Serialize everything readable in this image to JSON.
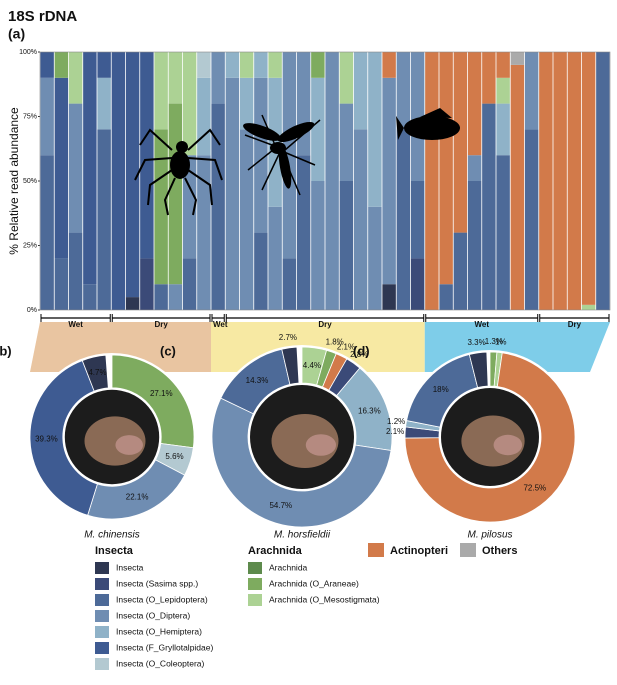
{
  "chart_data": [
    {
      "type": "bar",
      "stacked": true,
      "title": "18S rDNA",
      "panel": "(a)",
      "y_label": "% Relative read abundance",
      "ylim": [
        0,
        100
      ],
      "yticks": [
        {
          "value": 0,
          "label": "0%"
        },
        {
          "value": 25,
          "label": "25%"
        },
        {
          "value": 50,
          "label": "50%"
        },
        {
          "value": 75,
          "label": "75%"
        },
        {
          "value": 100,
          "label": "100%"
        }
      ],
      "categories": [
        null,
        null,
        null,
        null,
        null,
        null,
        null,
        null,
        null,
        null,
        null,
        null,
        null,
        null,
        null,
        null,
        null,
        null,
        null,
        null,
        null,
        null,
        null,
        null,
        null,
        null,
        null,
        null,
        null,
        null,
        null,
        null,
        null,
        null,
        null,
        null,
        null,
        null,
        null,
        null
      ],
      "group_labels": [
        "Wet",
        "Dry",
        "Wet",
        "Dry",
        "Wet",
        "Dry"
      ],
      "legend_groups": [
        "Insecta",
        "Arachnida"
      ],
      "series": [
        {
          "name": "Insecta",
          "color": "#2e3752",
          "values": [
            0,
            0,
            0,
            0,
            0,
            0,
            5,
            0,
            0,
            0,
            0,
            0,
            0,
            0,
            0,
            0,
            0,
            0,
            0,
            0,
            0,
            0,
            0,
            0,
            10,
            0,
            0,
            0,
            0,
            0,
            0,
            0,
            0,
            0,
            0,
            0,
            0,
            0,
            0,
            0
          ]
        },
        {
          "name": "Insecta (Sasima spp.)",
          "color": "#3b4a78",
          "values": [
            0,
            0,
            0,
            0,
            0,
            0,
            0,
            20,
            0,
            0,
            0,
            0,
            0,
            0,
            0,
            0,
            0,
            0,
            0,
            0,
            0,
            0,
            0,
            0,
            0,
            0,
            20,
            0,
            0,
            0,
            0,
            0,
            0,
            0,
            0,
            0,
            0,
            0,
            0,
            0
          ]
        },
        {
          "name": "Insecta (O_Lepidoptera)",
          "color": "#4d6a98",
          "values": [
            60,
            20,
            30,
            10,
            70,
            0,
            0,
            0,
            10,
            0,
            20,
            0,
            80,
            0,
            0,
            30,
            0,
            20,
            60,
            0,
            0,
            50,
            0,
            0,
            0,
            70,
            30,
            0,
            10,
            30,
            50,
            80,
            60,
            0,
            70,
            0,
            0,
            0,
            0,
            100
          ]
        },
        {
          "name": "Insecta (O_Diptera)",
          "color": "#6f8db2",
          "values": [
            30,
            0,
            50,
            0,
            0,
            0,
            0,
            0,
            0,
            10,
            40,
            60,
            20,
            90,
            70,
            60,
            40,
            80,
            40,
            50,
            100,
            30,
            70,
            40,
            80,
            30,
            50,
            0,
            0,
            0,
            10,
            0,
            0,
            0,
            30,
            0,
            0,
            0,
            0,
            0
          ]
        },
        {
          "name": "Insecta (O_Hemiptera)",
          "color": "#8fb2c8",
          "values": [
            0,
            0,
            0,
            0,
            20,
            0,
            0,
            0,
            0,
            0,
            0,
            30,
            0,
            10,
            20,
            10,
            50,
            0,
            0,
            40,
            0,
            0,
            30,
            60,
            0,
            0,
            0,
            0,
            0,
            0,
            0,
            0,
            20,
            0,
            0,
            0,
            0,
            0,
            0,
            0
          ]
        },
        {
          "name": "Insecta (F_Gryllotalpidae)",
          "color": "#3e5b92",
          "values": [
            10,
            70,
            0,
            90,
            10,
            100,
            95,
            80,
            0,
            0,
            0,
            0,
            0,
            0,
            0,
            0,
            0,
            0,
            0,
            0,
            0,
            0,
            0,
            0,
            0,
            0,
            0,
            0,
            0,
            0,
            0,
            0,
            0,
            0,
            0,
            0,
            0,
            0,
            0,
            0
          ]
        },
        {
          "name": "Insecta (O_Coleoptera)",
          "color": "#b3c9d1",
          "values": [
            0,
            0,
            0,
            0,
            0,
            0,
            0,
            0,
            0,
            0,
            0,
            10,
            0,
            0,
            0,
            0,
            0,
            0,
            0,
            0,
            0,
            0,
            0,
            0,
            0,
            0,
            0,
            0,
            0,
            0,
            0,
            0,
            0,
            0,
            0,
            0,
            0,
            0,
            0,
            0
          ]
        },
        {
          "name": "Arachnida",
          "color": "#5d8a4c",
          "values": [
            0,
            0,
            0,
            0,
            0,
            0,
            0,
            0,
            0,
            0,
            0,
            0,
            0,
            0,
            0,
            0,
            0,
            0,
            0,
            0,
            0,
            0,
            0,
            0,
            0,
            0,
            0,
            0,
            0,
            0,
            0,
            0,
            0,
            0,
            0,
            0,
            0,
            0,
            0,
            0
          ]
        },
        {
          "name": "Arachnida (O_Araneae)",
          "color": "#7eab5f",
          "values": [
            0,
            10,
            0,
            0,
            0,
            0,
            0,
            0,
            60,
            70,
            0,
            0,
            0,
            0,
            0,
            0,
            0,
            0,
            0,
            10,
            0,
            0,
            0,
            0,
            0,
            0,
            0,
            0,
            0,
            0,
            0,
            0,
            0,
            0,
            0,
            0,
            0,
            0,
            0,
            0
          ]
        },
        {
          "name": "Arachnida (O_Mesostigmata)",
          "color": "#acd294",
          "values": [
            0,
            0,
            20,
            0,
            0,
            0,
            0,
            0,
            30,
            20,
            40,
            0,
            0,
            0,
            10,
            0,
            10,
            0,
            0,
            0,
            0,
            20,
            0,
            0,
            0,
            0,
            0,
            0,
            0,
            0,
            0,
            0,
            10,
            0,
            0,
            0,
            0,
            0,
            2,
            0
          ]
        },
        {
          "name": "Actinopteri",
          "color": "#d27a4a",
          "values": [
            0,
            0,
            0,
            0,
            0,
            0,
            0,
            0,
            0,
            0,
            0,
            0,
            0,
            0,
            0,
            0,
            0,
            0,
            0,
            0,
            0,
            0,
            0,
            0,
            10,
            0,
            0,
            100,
            90,
            70,
            40,
            20,
            10,
            95,
            0,
            100,
            100,
            100,
            98,
            0
          ]
        },
        {
          "name": "Others",
          "color": "#aaaaaa",
          "values": [
            0,
            0,
            0,
            0,
            0,
            0,
            0,
            0,
            0,
            0,
            0,
            0,
            0,
            0,
            0,
            0,
            0,
            0,
            0,
            0,
            0,
            0,
            0,
            0,
            0,
            0,
            0,
            0,
            0,
            0,
            0,
            0,
            0,
            5,
            0,
            0,
            0,
            0,
            0,
            0
          ]
        }
      ]
    },
    {
      "type": "pie",
      "panel": "(b)",
      "title": "M. chinensis",
      "band": "#e9c5a1",
      "values": [
        27.1,
        5.6,
        22.1,
        39.3,
        4.7
      ],
      "value_labels": [
        "27.1%",
        "5.6%",
        "22.1%",
        "39.3%",
        "4.7%"
      ],
      "colors": [
        "#7eab5f",
        "#b3c9d1",
        "#6f8db2",
        "#3e5b92",
        "#2e3752"
      ]
    },
    {
      "type": "pie",
      "panel": "(c)",
      "title": "M. horsfieldii",
      "band": "#f7e9a3",
      "values": [
        4.4,
        1.8,
        2.1,
        2.8,
        16.3,
        54.7,
        14.3,
        2.7
      ],
      "value_labels": [
        "4.4%",
        "1.8%",
        "2.1%",
        "2.8%",
        "16.3%",
        "54.7%",
        "14.3%",
        "2.7%"
      ],
      "colors": [
        "#acd294",
        "#7eab5f",
        "#d27a4a",
        "#3b4a78",
        "#8fb2c8",
        "#6f8db2",
        "#4d6a98",
        "#2e3752"
      ]
    },
    {
      "type": "pie",
      "panel": "(d)",
      "title": "M. pilosus",
      "band": "#7ecde9",
      "values": [
        1.3,
        1,
        72.5,
        2.1,
        1.2,
        18,
        3.3
      ],
      "value_labels": [
        "1.3%",
        "1%",
        "72.5%",
        "2.1%",
        "1.2%",
        "18%",
        "3.3%"
      ],
      "colors": [
        "#7eab5f",
        "#acd294",
        "#d27a4a",
        "#3b4a78",
        "#8fb2c8",
        "#4d6a98",
        "#2e3752"
      ]
    }
  ]
}
